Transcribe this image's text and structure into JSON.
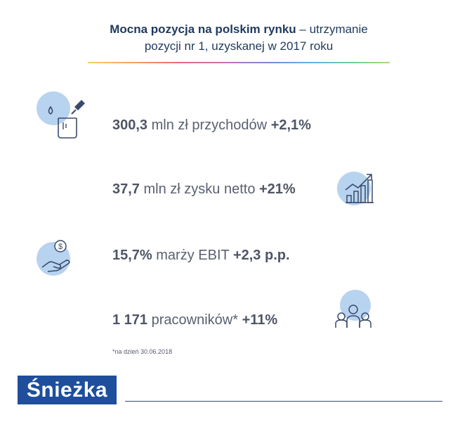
{
  "header": {
    "title_bold": "Mocna pozycja na polskim rynku",
    "title_rest_line1": " – utrzymanie",
    "title_line2": "pozycji nr 1, uzyskanej w 2017 roku"
  },
  "stats": [
    {
      "value": "300,3",
      "text": " mln zł przychodów ",
      "change": "+2,1%",
      "icon": "paint-bucket-icon"
    },
    {
      "value": "37,7",
      "text": " mln zł zysku netto ",
      "change": "+21%",
      "icon": "growth-chart-icon"
    },
    {
      "value": "15,7%",
      "text": " marży EBIT ",
      "change": "+2,3 p.p.",
      "icon": "hand-coin-icon"
    },
    {
      "value": "1 171",
      "text": " pracowników* ",
      "change": "+11%",
      "icon": "people-icon"
    }
  ],
  "footnote": "*na dzień 30.06.2018",
  "logo": "Śnieżka",
  "colors": {
    "accent_circle": "#b7d3ef",
    "title": "#1f3a5c",
    "logo_bg": "#1e4e9c"
  }
}
